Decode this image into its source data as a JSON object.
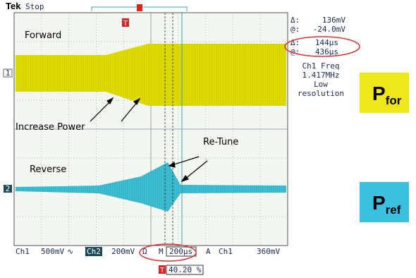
{
  "header": {
    "brand": "Tek",
    "status": "Stop"
  },
  "readout": {
    "delta_v_label": "Δ:",
    "delta_v": "136mV",
    "at_v_label": "@:",
    "at_v": "-24.0mV",
    "delta_t_label": "Δ:",
    "delta_t": "144µs",
    "at_t_label": "@:",
    "at_t": "436µs",
    "freq_lines": [
      "Ch1 Freq",
      "1.417MHz",
      "Low",
      "resolution"
    ]
  },
  "annotations": {
    "forward": "Forward",
    "increase_power": "Increase Power",
    "re_tune": "Re-Tune",
    "reverse": "Reverse"
  },
  "channels": [
    "1",
    "2"
  ],
  "trigger_marker": "T",
  "status_bar": {
    "ch1": "Ch1",
    "ch1_scale": "500mV",
    "ch1_coupling": "∿",
    "ch2": "Ch2",
    "ch2_scale": "200mV",
    "ohm": "Ω",
    "m": "M",
    "timebase": "200µs",
    "a": "A",
    "trig_src": "Ch1",
    "trig_level": "360mV"
  },
  "trigger_position": "40.20 %",
  "labels": [
    {
      "main": "P",
      "sub": "for"
    },
    {
      "main": "P",
      "sub": "ref"
    }
  ]
}
